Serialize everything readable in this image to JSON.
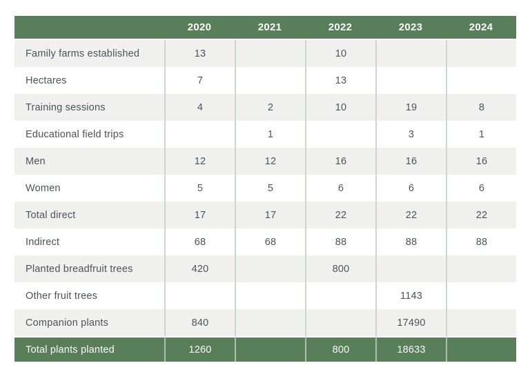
{
  "colors": {
    "header_green": "#587e5a",
    "row_alt_background": "#f0f1ee",
    "column_separator": "#ccd7cb",
    "body_text": "#4a525a",
    "header_text": "#fbfcfa"
  },
  "table": {
    "column_headers": [
      "",
      "2020",
      "2021",
      "2022",
      "2023",
      "2024"
    ]
  },
  "chart_data": {
    "type": "table",
    "categories": [
      "2020",
      "2021",
      "2022",
      "2023",
      "2024"
    ],
    "series": [
      {
        "name": "Family farms established",
        "values": [
          13,
          null,
          10,
          null,
          null
        ]
      },
      {
        "name": "Hectares",
        "values": [
          7,
          null,
          13,
          null,
          null
        ]
      },
      {
        "name": "Training sessions",
        "values": [
          4,
          2,
          10,
          19,
          8
        ]
      },
      {
        "name": "Educational field trips",
        "values": [
          null,
          1,
          null,
          3,
          1
        ]
      },
      {
        "name": "Men",
        "values": [
          12,
          12,
          16,
          16,
          16
        ]
      },
      {
        "name": "Women",
        "values": [
          5,
          5,
          6,
          6,
          6
        ]
      },
      {
        "name": "Total direct",
        "values": [
          17,
          17,
          22,
          22,
          22
        ]
      },
      {
        "name": "Indirect",
        "values": [
          68,
          68,
          88,
          88,
          88
        ]
      },
      {
        "name": "Planted breadfruit trees",
        "values": [
          420,
          null,
          800,
          null,
          null
        ]
      },
      {
        "name": "Other fruit trees",
        "values": [
          null,
          null,
          null,
          1143,
          null
        ]
      },
      {
        "name": "Companion plants",
        "values": [
          840,
          null,
          null,
          17490,
          null
        ]
      },
      {
        "name": "Total plants planted",
        "values": [
          1260,
          null,
          800,
          18633,
          null
        ],
        "is_total": true
      }
    ]
  }
}
